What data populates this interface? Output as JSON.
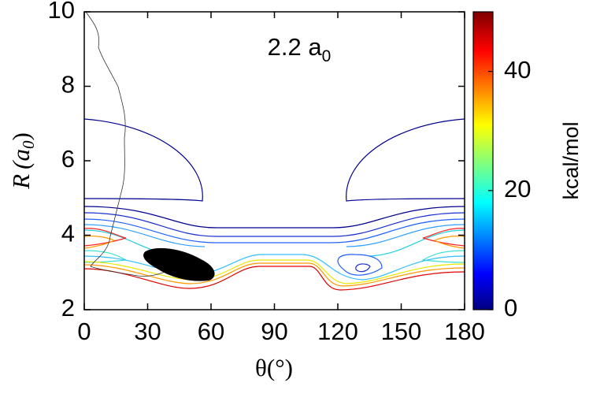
{
  "chart_data": {
    "type": "contour",
    "title": "2.2 a",
    "title_sub": "0",
    "xlabel": "θ(°)",
    "ylabel_symbol": "R",
    "ylabel_unit": "(a",
    "ylabel_sub": "0",
    "ylabel_close": ")",
    "xlim": [
      0,
      180
    ],
    "xticks": [
      0,
      30,
      60,
      90,
      120,
      150,
      180
    ],
    "ylim": [
      2,
      10
    ],
    "yticks": [
      2,
      4,
      6,
      8,
      10
    ],
    "colorbar": {
      "label": "kcal/mol",
      "lim": [
        0,
        50
      ],
      "ticks": [
        0,
        20,
        40
      ],
      "colormap": "jet"
    }
  }
}
